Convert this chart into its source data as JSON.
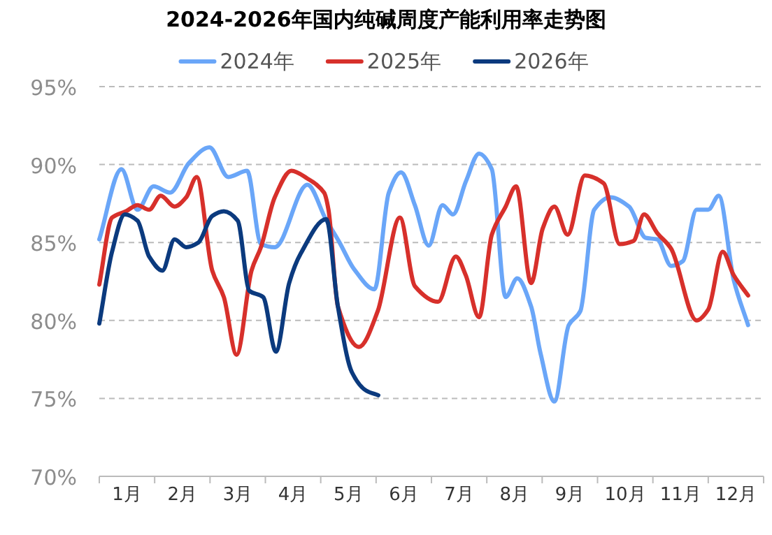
{
  "chart_data": {
    "type": "line",
    "title": "2024-2026年国内纯碱周度产能利用率走势图",
    "xlim": [
      0,
      12
    ],
    "xticks": [
      {
        "value": 0,
        "label": null
      },
      {
        "value": 1,
        "label": null
      },
      {
        "value": 2,
        "label": null
      },
      {
        "value": 3,
        "label": null
      },
      {
        "value": 4,
        "label": null
      },
      {
        "value": 5,
        "label": null
      },
      {
        "value": 6,
        "label": null
      },
      {
        "value": 7,
        "label": null
      },
      {
        "value": 8,
        "label": null
      },
      {
        "value": 9,
        "label": null
      },
      {
        "value": 10,
        "label": null
      },
      {
        "value": 11,
        "label": null
      },
      {
        "value": 12,
        "label": null
      },
      {
        "value": 0.5,
        "label": "1月"
      },
      {
        "value": 1.5,
        "label": "2月"
      },
      {
        "value": 2.5,
        "label": "3月"
      },
      {
        "value": 3.5,
        "label": "4月"
      },
      {
        "value": 4.5,
        "label": "5月"
      },
      {
        "value": 5.5,
        "label": "6月"
      },
      {
        "value": 6.5,
        "label": "7月"
      },
      {
        "value": 7.5,
        "label": "8月"
      },
      {
        "value": 8.5,
        "label": "9月"
      },
      {
        "value": 9.5,
        "label": "10月"
      },
      {
        "value": 10.5,
        "label": "11月"
      },
      {
        "value": 11.5,
        "label": "12月"
      }
    ],
    "ylim": [
      70,
      95
    ],
    "yticks": [
      {
        "value": 70,
        "label": "70%"
      },
      {
        "value": 75,
        "label": "75%"
      },
      {
        "value": 80,
        "label": "80%"
      },
      {
        "value": 85,
        "label": "85%"
      },
      {
        "value": 90,
        "label": "90%"
      },
      {
        "value": 95,
        "label": "95%"
      }
    ],
    "grid": "y",
    "legend": "top",
    "marker": "none",
    "line_style": "solid",
    "series": [
      {
        "name": "2024年",
        "color": "#6aa6f8",
        "x": [
          0,
          0.4,
          0.69,
          0.98,
          1.28,
          1.62,
          1.99,
          2.33,
          2.67,
          2.92,
          3.17,
          3.76,
          4.09,
          4.34,
          4.6,
          4.97,
          5.23,
          5.45,
          5.7,
          5.95,
          6.2,
          6.39,
          6.62,
          6.86,
          7.09,
          7.34,
          7.55,
          7.8,
          7.97,
          8.22,
          8.48,
          8.69,
          8.94,
          9.23,
          9.57,
          9.87,
          10.08,
          10.33,
          10.54,
          10.79,
          11.0,
          11.19,
          11.46,
          11.72
        ],
        "values": [
          85.2,
          89.7,
          87.1,
          88.6,
          88.2,
          90.1,
          91.1,
          89.2,
          89.6,
          84.9,
          84.7,
          88.7,
          86.5,
          85.0,
          83.3,
          82.0,
          88.2,
          89.5,
          87.4,
          84.8,
          87.4,
          86.8,
          88.9,
          90.7,
          89.7,
          81.5,
          82.7,
          80.9,
          77.9,
          74.8,
          79.7,
          80.6,
          87.1,
          87.9,
          87.3,
          85.3,
          85.2,
          83.5,
          83.8,
          87.1,
          87.1,
          88.0,
          82.6,
          79.7
        ]
      },
      {
        "name": "2025年",
        "color": "#d7302b",
        "x": [
          0,
          0.23,
          0.48,
          0.69,
          0.9,
          1.11,
          1.36,
          1.57,
          1.76,
          2.04,
          2.25,
          2.48,
          2.75,
          2.92,
          3.17,
          3.47,
          3.76,
          4.06,
          4.14,
          4.31,
          4.69,
          5.03,
          5.43,
          5.7,
          6.12,
          6.44,
          6.62,
          6.86,
          7.09,
          7.34,
          7.53,
          7.8,
          8.01,
          8.22,
          8.46,
          8.77,
          9.11,
          9.4,
          9.65,
          9.84,
          10.08,
          10.33,
          10.79,
          11.0,
          11.26,
          11.46,
          11.72
        ],
        "values": [
          82.3,
          86.6,
          87.0,
          87.4,
          87.1,
          88.0,
          87.3,
          87.9,
          89.2,
          83.2,
          81.5,
          77.8,
          83.2,
          84.7,
          87.9,
          89.6,
          89.1,
          88.2,
          87.1,
          80.9,
          78.3,
          80.6,
          86.6,
          82.2,
          81.2,
          84.1,
          82.9,
          80.2,
          85.5,
          87.3,
          88.6,
          82.4,
          85.9,
          87.3,
          85.5,
          89.3,
          88.8,
          84.9,
          85.1,
          86.8,
          85.6,
          84.6,
          80.0,
          80.7,
          84.4,
          82.9,
          81.6
        ]
      },
      {
        "name": "2026年",
        "color": "#0b3a7e",
        "x": [
          0,
          0.23,
          0.46,
          0.69,
          0.9,
          1.14,
          1.36,
          1.57,
          1.79,
          2.04,
          2.25,
          2.5,
          2.71,
          2.96,
          3.19,
          3.43,
          3.64,
          4.1,
          4.31,
          4.56,
          4.82,
          5.04
        ],
        "values": [
          79.8,
          84.4,
          86.8,
          86.4,
          84.1,
          83.2,
          85.2,
          84.7,
          85.0,
          86.7,
          87.0,
          86.4,
          81.9,
          81.5,
          78.0,
          82.4,
          84.3,
          86.5,
          80.9,
          76.7,
          75.5,
          75.2
        ]
      }
    ]
  }
}
